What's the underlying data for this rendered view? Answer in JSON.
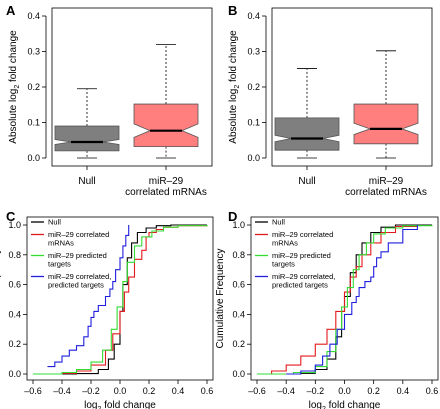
{
  "figure": {
    "panel_letters": [
      "A",
      "B",
      "C",
      "D"
    ]
  },
  "colors": {
    "null_box": "#7f7f7f",
    "mir29_box": "#ff7f7f",
    "null_line": "#000000",
    "correlated_line": "#e31a1c",
    "predicted_line": "#33dd33",
    "corr_pred_line": "#1f1fdd",
    "axis": "#000000"
  },
  "chart_data": [
    {
      "panel": "A",
      "type": "box",
      "ylabel_main": "Absolute log",
      "ylabel_sub": "2",
      "ylabel_tail": " fold change",
      "ylim": [
        0,
        0.4
      ],
      "yticks": [
        "0.0",
        "0.1",
        "0.2",
        "0.3",
        "0.4"
      ],
      "categories": [
        "Null",
        "miR–29 correlated mRNAs"
      ],
      "category_lines": [
        [
          "Null"
        ],
        [
          "miR–29",
          "correlated mRNAs"
        ]
      ],
      "boxes": [
        {
          "name": "Null",
          "color_key": "null_box",
          "min": 0.0,
          "q1": 0.02,
          "median": 0.045,
          "q3": 0.09,
          "max": 0.195,
          "notch": [
            0.038,
            0.052
          ]
        },
        {
          "name": "miR–29 correlated mRNAs",
          "color_key": "mir29_box",
          "min": 0.0,
          "q1": 0.032,
          "median": 0.077,
          "q3": 0.152,
          "max": 0.32,
          "notch": [
            0.058,
            0.096
          ]
        }
      ]
    },
    {
      "panel": "B",
      "type": "box",
      "ylabel_main": "Absolute log",
      "ylabel_sub": "2",
      "ylabel_tail": " fold change",
      "ylim": [
        0,
        0.4
      ],
      "yticks": [
        "0.0",
        "0.1",
        "0.2",
        "0.3",
        "0.4"
      ],
      "categories": [
        "Null",
        "miR–29 correlated mRNAs"
      ],
      "category_lines": [
        [
          "Null"
        ],
        [
          "miR–29",
          "correlated mRNAs"
        ]
      ],
      "boxes": [
        {
          "name": "Null",
          "color_key": "null_box",
          "min": 0.0,
          "q1": 0.022,
          "median": 0.055,
          "q3": 0.113,
          "max": 0.252,
          "notch": [
            0.046,
            0.064
          ]
        },
        {
          "name": "miR–29 correlated mRNAs",
          "color_key": "mir29_box",
          "min": 0.0,
          "q1": 0.04,
          "median": 0.082,
          "q3": 0.152,
          "max": 0.302,
          "notch": [
            0.066,
            0.098
          ]
        }
      ]
    },
    {
      "panel": "C",
      "type": "line",
      "ylabel": "Cumulative Frequency",
      "xlabel_main": "log",
      "xlabel_sub": "2",
      "xlabel_tail": " fold change",
      "xlim": [
        -0.6,
        0.6
      ],
      "ylim": [
        0,
        1.0
      ],
      "xticks": [
        "–0.6",
        "–0.4",
        "–0.2",
        "0.0",
        "0.2",
        "0.4",
        "0.6"
      ],
      "yticks": [
        "0.0",
        "0.2",
        "0.4",
        "0.6",
        "0.8",
        "1.0"
      ],
      "legend": [
        {
          "lines": [
            "Null"
          ],
          "color_key": "null_line"
        },
        {
          "lines": [
            "miR–29 correlated",
            "mRNAs"
          ],
          "color_key": "correlated_line"
        },
        {
          "lines": [
            "miR–29 predicted",
            "targets"
          ],
          "color_key": "predicted_line"
        },
        {
          "lines": [
            "miR–29 correlated,",
            "predicted targets"
          ],
          "color_key": "corr_pred_line"
        }
      ],
      "series": [
        {
          "name": "Null",
          "color_key": "null_line",
          "x": [
            -0.6,
            -0.3,
            -0.15,
            -0.08,
            -0.04,
            0.0,
            0.02,
            0.05,
            0.08,
            0.12,
            0.18,
            0.25,
            0.35,
            0.6
          ],
          "y": [
            0.0,
            0.003,
            0.03,
            0.1,
            0.2,
            0.42,
            0.6,
            0.78,
            0.88,
            0.95,
            0.98,
            0.995,
            1.0,
            1.0
          ]
        },
        {
          "name": "miR–29 correlated mRNAs",
          "color_key": "correlated_line",
          "x": [
            -0.6,
            -0.4,
            -0.3,
            -0.2,
            -0.1,
            -0.05,
            0.0,
            0.03,
            0.06,
            0.1,
            0.15,
            0.18,
            0.2,
            0.25,
            0.3,
            0.4,
            0.6
          ],
          "y": [
            0.0,
            0.005,
            0.02,
            0.06,
            0.16,
            0.27,
            0.42,
            0.55,
            0.65,
            0.77,
            0.83,
            0.92,
            0.95,
            0.97,
            0.985,
            0.995,
            1.0
          ]
        },
        {
          "name": "miR–29 predicted targets",
          "color_key": "predicted_line",
          "x": [
            -0.6,
            -0.4,
            -0.3,
            -0.2,
            -0.12,
            -0.06,
            -0.02,
            0.02,
            0.05,
            0.1,
            0.15,
            0.22,
            0.3,
            0.4,
            0.6
          ],
          "y": [
            0.0,
            0.01,
            0.03,
            0.08,
            0.16,
            0.3,
            0.45,
            0.62,
            0.75,
            0.86,
            0.92,
            0.96,
            0.985,
            0.995,
            1.0
          ]
        },
        {
          "name": "miR–29 correlated, predicted targets",
          "color_key": "corr_pred_line",
          "x": [
            -0.5,
            -0.45,
            -0.4,
            -0.35,
            -0.3,
            -0.25,
            -0.22,
            -0.2,
            -0.18,
            -0.15,
            -0.1,
            -0.07,
            -0.05,
            -0.03,
            0.0,
            0.02,
            0.04,
            0.06
          ],
          "y": [
            0.05,
            0.08,
            0.12,
            0.16,
            0.19,
            0.25,
            0.32,
            0.38,
            0.42,
            0.46,
            0.52,
            0.57,
            0.62,
            0.7,
            0.78,
            0.86,
            0.93,
            1.0
          ]
        }
      ]
    },
    {
      "panel": "D",
      "type": "line",
      "ylabel": "Cumulative Frequency",
      "xlabel_main": "log",
      "xlabel_sub": "2",
      "xlabel_tail": " fold change",
      "xlim": [
        -0.6,
        0.6
      ],
      "ylim": [
        0,
        1.0
      ],
      "xticks": [
        "–0.6",
        "–0.4",
        "–0.2",
        "0.0",
        "0.2",
        "0.4",
        "0.6"
      ],
      "yticks": [
        "0.0",
        "0.2",
        "0.4",
        "0.6",
        "0.8",
        "1.0"
      ],
      "legend": [
        {
          "lines": [
            "Null"
          ],
          "color_key": "null_line"
        },
        {
          "lines": [
            "miR–29 correlated",
            "mRNAs"
          ],
          "color_key": "correlated_line"
        },
        {
          "lines": [
            "miR–29 predicted",
            "targets"
          ],
          "color_key": "predicted_line"
        },
        {
          "lines": [
            "miR–29 correlated,",
            "predicted targets"
          ],
          "color_key": "corr_pred_line"
        }
      ],
      "series": [
        {
          "name": "Null",
          "color_key": "null_line",
          "x": [
            -0.6,
            -0.3,
            -0.2,
            -0.12,
            -0.06,
            -0.02,
            0.0,
            0.04,
            0.08,
            0.12,
            0.18,
            0.25,
            0.35,
            0.6
          ],
          "y": [
            0.0,
            0.005,
            0.03,
            0.1,
            0.25,
            0.42,
            0.52,
            0.68,
            0.8,
            0.88,
            0.95,
            0.985,
            1.0,
            1.0
          ]
        },
        {
          "name": "miR–29 correlated mRNAs",
          "color_key": "correlated_line",
          "x": [
            -0.6,
            -0.5,
            -0.4,
            -0.3,
            -0.2,
            -0.12,
            -0.06,
            0.0,
            0.04,
            0.08,
            0.12,
            0.18,
            0.25,
            0.35,
            0.5
          ],
          "y": [
            0.0,
            0.02,
            0.06,
            0.12,
            0.2,
            0.3,
            0.42,
            0.55,
            0.65,
            0.72,
            0.8,
            0.88,
            0.95,
            0.99,
            1.0
          ]
        },
        {
          "name": "miR–29 predicted targets",
          "color_key": "predicted_line",
          "x": [
            -0.6,
            -0.35,
            -0.2,
            -0.12,
            -0.06,
            -0.02,
            0.02,
            0.06,
            0.1,
            0.15,
            0.2,
            0.28,
            0.4,
            0.6
          ],
          "y": [
            0.0,
            0.01,
            0.05,
            0.15,
            0.3,
            0.45,
            0.58,
            0.7,
            0.8,
            0.88,
            0.94,
            0.98,
            0.995,
            1.0
          ]
        },
        {
          "name": "miR–29 correlated, predicted targets",
          "color_key": "corr_pred_line",
          "x": [
            -0.4,
            -0.3,
            -0.2,
            -0.15,
            -0.1,
            -0.05,
            0.0,
            0.05,
            0.08,
            0.1,
            0.14,
            0.18,
            0.2,
            0.22,
            0.25,
            0.3,
            0.4,
            0.5
          ],
          "y": [
            0.0,
            0.02,
            0.06,
            0.12,
            0.2,
            0.3,
            0.4,
            0.48,
            0.52,
            0.58,
            0.62,
            0.65,
            0.72,
            0.78,
            0.82,
            0.88,
            0.97,
            1.0
          ]
        }
      ]
    }
  ]
}
